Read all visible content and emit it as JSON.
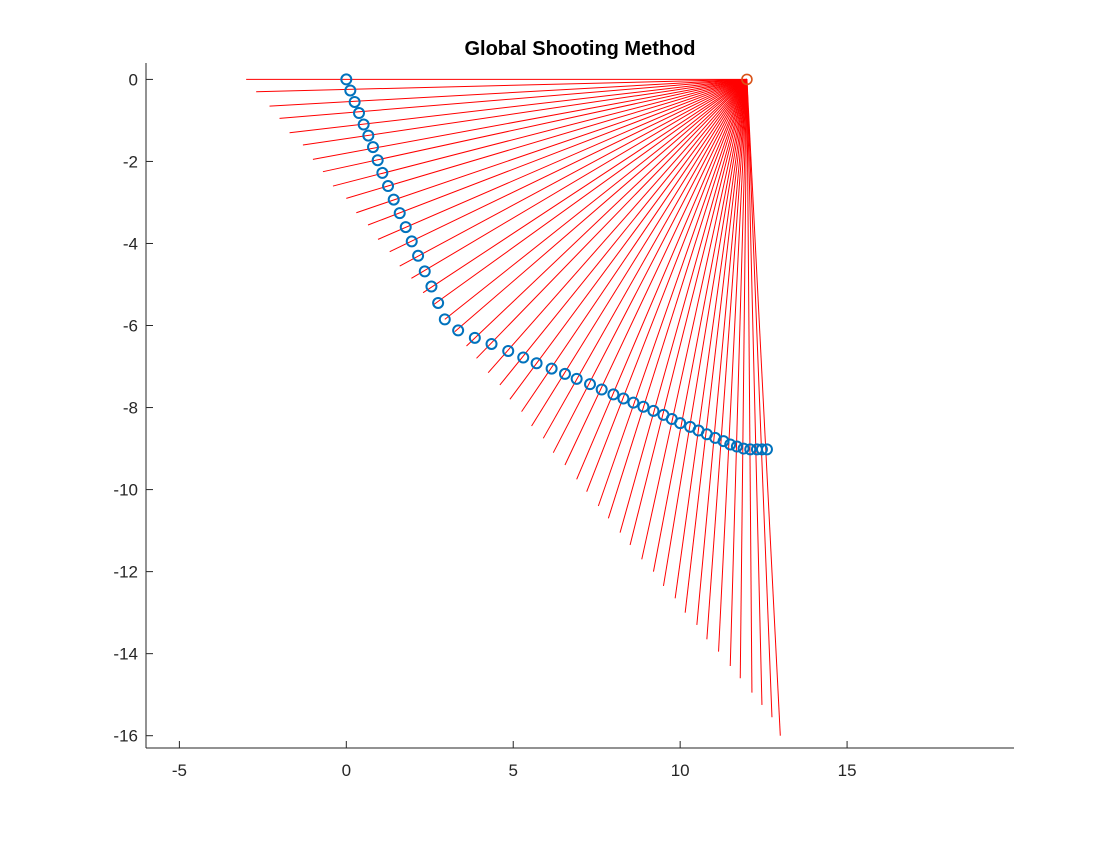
{
  "chart_data": {
    "type": "scatter",
    "title": "Global Shooting Method",
    "xlabel": "",
    "ylabel": "",
    "xlim": [
      -6,
      20
    ],
    "ylim": [
      -16.3,
      0.4
    ],
    "x_ticks": [
      -5,
      0,
      5,
      10,
      15
    ],
    "y_ticks": [
      0,
      -2,
      -4,
      -6,
      -8,
      -10,
      -12,
      -14,
      -16
    ],
    "x_tick_labels": [
      "-5",
      "0",
      "5",
      "10",
      "15"
    ],
    "y_tick_labels": [
      "0",
      "-2",
      "-4",
      "-6",
      "-8",
      "-10",
      "-12",
      "-14",
      "-16"
    ],
    "grid": false,
    "colors": {
      "rays": "#ff0000",
      "points": "#0072bd",
      "target": "#d95319",
      "axes": "#262626"
    },
    "target_point": {
      "x": 12,
      "y": 0
    },
    "ray_endpoints": [
      [
        -3.0,
        0.0
      ],
      [
        -2.7,
        -0.3
      ],
      [
        -2.3,
        -0.65
      ],
      [
        -2.0,
        -0.95
      ],
      [
        -1.7,
        -1.3
      ],
      [
        -1.3,
        -1.6
      ],
      [
        -1.0,
        -1.95
      ],
      [
        -0.7,
        -2.25
      ],
      [
        -0.4,
        -2.6
      ],
      [
        0.0,
        -2.9
      ],
      [
        0.3,
        -3.25
      ],
      [
        0.65,
        -3.55
      ],
      [
        0.95,
        -3.9
      ],
      [
        1.3,
        -4.2
      ],
      [
        1.6,
        -4.55
      ],
      [
        1.95,
        -4.85
      ],
      [
        2.3,
        -5.2
      ],
      [
        2.6,
        -5.5
      ],
      [
        2.95,
        -5.85
      ],
      [
        3.25,
        -6.15
      ],
      [
        3.6,
        -6.5
      ],
      [
        3.9,
        -6.8
      ],
      [
        4.25,
        -7.15
      ],
      [
        4.6,
        -7.45
      ],
      [
        4.9,
        -7.8
      ],
      [
        5.25,
        -8.1
      ],
      [
        5.55,
        -8.45
      ],
      [
        5.9,
        -8.75
      ],
      [
        6.2,
        -9.1
      ],
      [
        6.55,
        -9.4
      ],
      [
        6.9,
        -9.75
      ],
      [
        7.2,
        -10.05
      ],
      [
        7.55,
        -10.4
      ],
      [
        7.85,
        -10.7
      ],
      [
        8.2,
        -11.05
      ],
      [
        8.5,
        -11.35
      ],
      [
        8.85,
        -11.7
      ],
      [
        9.2,
        -12.0
      ],
      [
        9.5,
        -12.35
      ],
      [
        9.85,
        -12.65
      ],
      [
        10.15,
        -13.0
      ],
      [
        10.5,
        -13.3
      ],
      [
        10.8,
        -13.65
      ],
      [
        11.15,
        -13.95
      ],
      [
        11.5,
        -14.3
      ],
      [
        11.8,
        -14.6
      ],
      [
        12.15,
        -14.95
      ],
      [
        12.45,
        -15.25
      ],
      [
        12.75,
        -15.55
      ],
      [
        13.0,
        -16.0
      ]
    ],
    "points": [
      [
        0.0,
        0.0
      ],
      [
        0.12,
        -0.27
      ],
      [
        0.25,
        -0.55
      ],
      [
        0.38,
        -0.82
      ],
      [
        0.52,
        -1.1
      ],
      [
        0.66,
        -1.37
      ],
      [
        0.8,
        -1.65
      ],
      [
        0.94,
        -1.97
      ],
      [
        1.08,
        -2.28
      ],
      [
        1.25,
        -2.6
      ],
      [
        1.42,
        -2.93
      ],
      [
        1.6,
        -3.26
      ],
      [
        1.78,
        -3.6
      ],
      [
        1.96,
        -3.95
      ],
      [
        2.15,
        -4.3
      ],
      [
        2.35,
        -4.68
      ],
      [
        2.55,
        -5.05
      ],
      [
        2.75,
        -5.45
      ],
      [
        2.95,
        -5.85
      ],
      [
        3.35,
        -6.12
      ],
      [
        3.85,
        -6.3
      ],
      [
        4.35,
        -6.45
      ],
      [
        4.85,
        -6.62
      ],
      [
        5.3,
        -6.78
      ],
      [
        5.7,
        -6.92
      ],
      [
        6.15,
        -7.05
      ],
      [
        6.55,
        -7.18
      ],
      [
        6.9,
        -7.3
      ],
      [
        7.3,
        -7.43
      ],
      [
        7.65,
        -7.56
      ],
      [
        8.0,
        -7.68
      ],
      [
        8.3,
        -7.78
      ],
      [
        8.6,
        -7.88
      ],
      [
        8.9,
        -7.98
      ],
      [
        9.2,
        -8.08
      ],
      [
        9.5,
        -8.18
      ],
      [
        9.75,
        -8.28
      ],
      [
        10.0,
        -8.38
      ],
      [
        10.3,
        -8.47
      ],
      [
        10.55,
        -8.56
      ],
      [
        10.8,
        -8.65
      ],
      [
        11.05,
        -8.74
      ],
      [
        11.3,
        -8.82
      ],
      [
        11.5,
        -8.9
      ],
      [
        11.7,
        -8.95
      ],
      [
        11.9,
        -9.0
      ],
      [
        12.1,
        -9.02
      ],
      [
        12.3,
        -9.02
      ],
      [
        12.45,
        -9.02
      ],
      [
        12.6,
        -9.02
      ]
    ]
  }
}
